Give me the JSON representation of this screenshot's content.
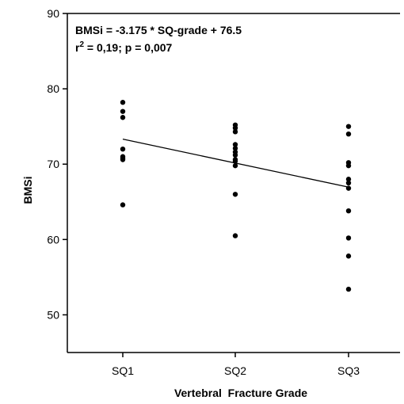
{
  "chart_data": {
    "type": "scatter",
    "xlabel": "Vertebral  Fracture Grade",
    "ylabel": "BMSi",
    "categories": [
      "SQ1",
      "SQ2",
      "SQ3"
    ],
    "ylim": [
      45,
      90
    ],
    "yticks": [
      50,
      60,
      70,
      80,
      90
    ],
    "grid": false,
    "annotation": {
      "line1": "BMSi = -3.175 * SQ-grade + 76.5",
      "line2_prefix": "r",
      "line2_sup": "2",
      "line2_rest": " = 0,19; p = 0,007"
    },
    "regression": {
      "slope": -3.175,
      "intercept": 76.5,
      "x": [
        1,
        3
      ]
    },
    "series": [
      {
        "category": "SQ1",
        "values": [
          78.2,
          77.0,
          76.2,
          72.0,
          71.0,
          70.8,
          70.6,
          64.6
        ]
      },
      {
        "category": "SQ2",
        "values": [
          75.2,
          74.8,
          74.3,
          72.6,
          72.1,
          71.6,
          71.2,
          70.6,
          70.4,
          69.8,
          66.0,
          60.5
        ]
      },
      {
        "category": "SQ3",
        "values": [
          75.0,
          74.0,
          70.2,
          69.8,
          68.0,
          67.5,
          66.8,
          63.8,
          60.2,
          57.8,
          53.4
        ]
      }
    ]
  }
}
